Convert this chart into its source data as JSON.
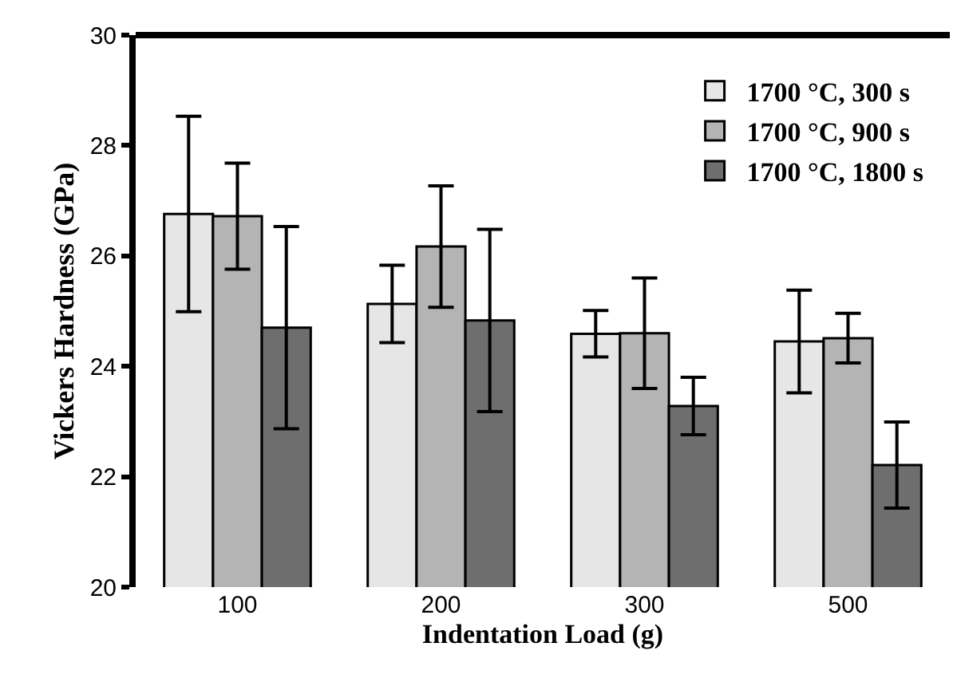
{
  "chart_data": {
    "type": "bar",
    "xlabel": "Indentation Load (g)",
    "ylabel": "Vickers Hardness (GPa)",
    "categories": [
      "100",
      "200",
      "300",
      "500"
    ],
    "series": [
      {
        "name": "1700 °C, 300 s",
        "color": "#e6e6e6",
        "values": [
          26.76,
          25.13,
          24.59,
          24.45
        ],
        "errors": [
          1.77,
          0.7,
          0.42,
          0.93
        ]
      },
      {
        "name": "1700 °C, 900 s",
        "color": "#b4b4b4",
        "values": [
          26.72,
          26.17,
          24.6,
          24.51
        ],
        "errors": [
          0.96,
          1.1,
          1.0,
          0.45
        ]
      },
      {
        "name": "1700 °C, 1800 s",
        "color": "#6e6e6e",
        "values": [
          24.7,
          24.83,
          23.28,
          22.21
        ],
        "errors": [
          1.83,
          1.65,
          0.52,
          0.78
        ]
      }
    ],
    "ylim": [
      20,
      30
    ],
    "yticks": [
      20,
      22,
      24,
      26,
      28,
      30
    ],
    "legend": "top right"
  }
}
